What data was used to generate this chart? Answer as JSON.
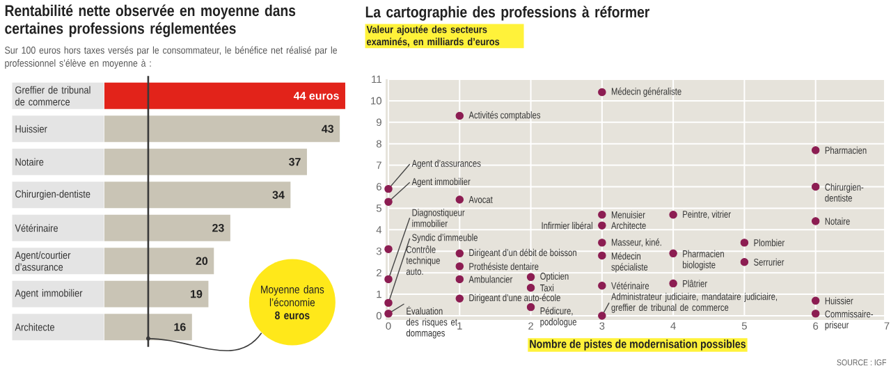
{
  "chart_data": [
    {
      "type": "bar",
      "orientation": "horizontal",
      "title": "Rentabilité nette observée en moyenne dans certaines professions réglementées",
      "subtitle": "Sur 100 euros hors taxes versés par le consommateur, le bénéfice net réalisé par le professionnel s’élève en moyenne à :",
      "categories": [
        "Greffier de tribunal de commerce",
        "Huissier",
        "Notaire",
        "Chirurgien-dentiste",
        "Vétérinaire",
        "Agent/courtier d’assurance",
        "Agent immobilier",
        "Architecte"
      ],
      "values": [
        44,
        43,
        37,
        34,
        23,
        20,
        19,
        16
      ],
      "colors": [
        "#e2231a",
        "#c9c4b5",
        "#c9c4b5",
        "#c9c4b5",
        "#c9c4b5",
        "#c9c4b5",
        "#c9c4b5",
        "#c9c4b5"
      ],
      "value_labels": [
        "44 euros",
        "43",
        "37",
        "34",
        "23",
        "20",
        "19",
        "16"
      ],
      "ref_lines": [
        {
          "axis": "x",
          "value": 8,
          "label": "Moyenne dans l’économie **8 euros**",
          "color": "#3a3a3a"
        }
      ]
    },
    {
      "type": "scatter",
      "title": "La cartographie des professions à réformer",
      "ylabel": "Valeur ajoutée des secteurs examinés, en milliards d’euros",
      "xlabel": "Nombre de pistes de modernisation possibles",
      "xlim": [
        0,
        7
      ],
      "ylim": [
        0,
        11
      ],
      "xticks": [
        0,
        1,
        2,
        3,
        4,
        5,
        6,
        7
      ],
      "yticks": [
        0,
        1,
        2,
        3,
        4,
        5,
        6,
        7,
        8,
        9,
        10,
        11
      ],
      "grid": true,
      "marker": "circle",
      "series": [
        {
          "color": "#8c1d52",
          "x": [
            3,
            1,
            6,
            0,
            0,
            6,
            1,
            0,
            3,
            3,
            4,
            6,
            0,
            0,
            3,
            5,
            1,
            3,
            4,
            1,
            5,
            1,
            2,
            2,
            3,
            4,
            1,
            3,
            6,
            0,
            2,
            6
          ],
          "values": [
            10.4,
            9.3,
            7.7,
            5.9,
            5.3,
            6.0,
            5.4,
            1.7,
            4.7,
            4.2,
            4.7,
            4.4,
            0.6,
            3.1,
            3.4,
            3.4,
            2.9,
            2.8,
            2.9,
            2.3,
            2.5,
            1.7,
            1.8,
            1.3,
            1.4,
            1.5,
            0.8,
            0.0,
            0.7,
            0.1,
            0.4,
            0.1
          ]
        }
      ],
      "annotations": [
        {
          "text": "Médecin généraliste",
          "x": 3,
          "y": 10.4
        },
        {
          "text": "Activités comptables",
          "x": 1,
          "y": 9.3
        },
        {
          "text": "Pharmacien",
          "x": 6,
          "y": 7.7
        },
        {
          "text": "Agent d’assurances",
          "x": 0,
          "y": 5.9
        },
        {
          "text": "Agent immobilier",
          "x": 0,
          "y": 5.3
        },
        {
          "text": "Chirurgien-dentiste",
          "x": 6,
          "y": 6.0
        },
        {
          "text": "Avocat",
          "x": 1,
          "y": 5.4
        },
        {
          "text": "Diagnostiqueur immobilier",
          "x": 0,
          "y": 1.7
        },
        {
          "text": "Infirmier libéral",
          "x": 3,
          "y": 4.2
        },
        {
          "text": "Menuisier",
          "x": 3,
          "y": 4.7
        },
        {
          "text": "Architecte",
          "x": 3,
          "y": 4.2
        },
        {
          "text": "Peintre, vitrier",
          "x": 4,
          "y": 4.7
        },
        {
          "text": "Notaire",
          "x": 6,
          "y": 4.4
        },
        {
          "text": "Syndic d’immeuble",
          "x": 0,
          "y": 0.6
        },
        {
          "text": "Contrôle technique auto.",
          "x": 0,
          "y": 3.1
        },
        {
          "text": "Masseur, kiné.",
          "x": 3,
          "y": 3.4
        },
        {
          "text": "Plombier",
          "x": 5,
          "y": 3.4
        },
        {
          "text": "Dirigeant d’un débit de boisson",
          "x": 1,
          "y": 2.9
        },
        {
          "text": "Médecin spécialiste",
          "x": 3,
          "y": 2.8
        },
        {
          "text": "Pharmacien biologiste",
          "x": 4,
          "y": 2.9
        },
        {
          "text": "Prothésiste dentaire",
          "x": 1,
          "y": 2.3
        },
        {
          "text": "Serrurier",
          "x": 5,
          "y": 2.5
        },
        {
          "text": "Ambulancier",
          "x": 1,
          "y": 1.7
        },
        {
          "text": "Opticien",
          "x": 2,
          "y": 1.8
        },
        {
          "text": "Taxi",
          "x": 2,
          "y": 1.3
        },
        {
          "text": "Vétérinaire",
          "x": 3,
          "y": 1.4
        },
        {
          "text": "Plâtrier",
          "x": 4,
          "y": 1.5
        },
        {
          "text": "Dirigeant d’une auto-école",
          "x": 1,
          "y": 0.8
        },
        {
          "text": "Administrateur judiciaire, mandataire judiciaire, greffier de tribunal de commerce",
          "x": 3,
          "y": 0.0
        },
        {
          "text": "Huissier",
          "x": 6,
          "y": 0.7
        },
        {
          "text": "Évaluation des risques et dommages",
          "x": 0,
          "y": 0.1
        },
        {
          "text": "Pédicure, podologue",
          "x": 2,
          "y": 0.4
        },
        {
          "text": "Commissaire-priseur",
          "x": 6,
          "y": 0.1
        },
        "SOURCE : IGF"
      ]
    }
  ]
}
